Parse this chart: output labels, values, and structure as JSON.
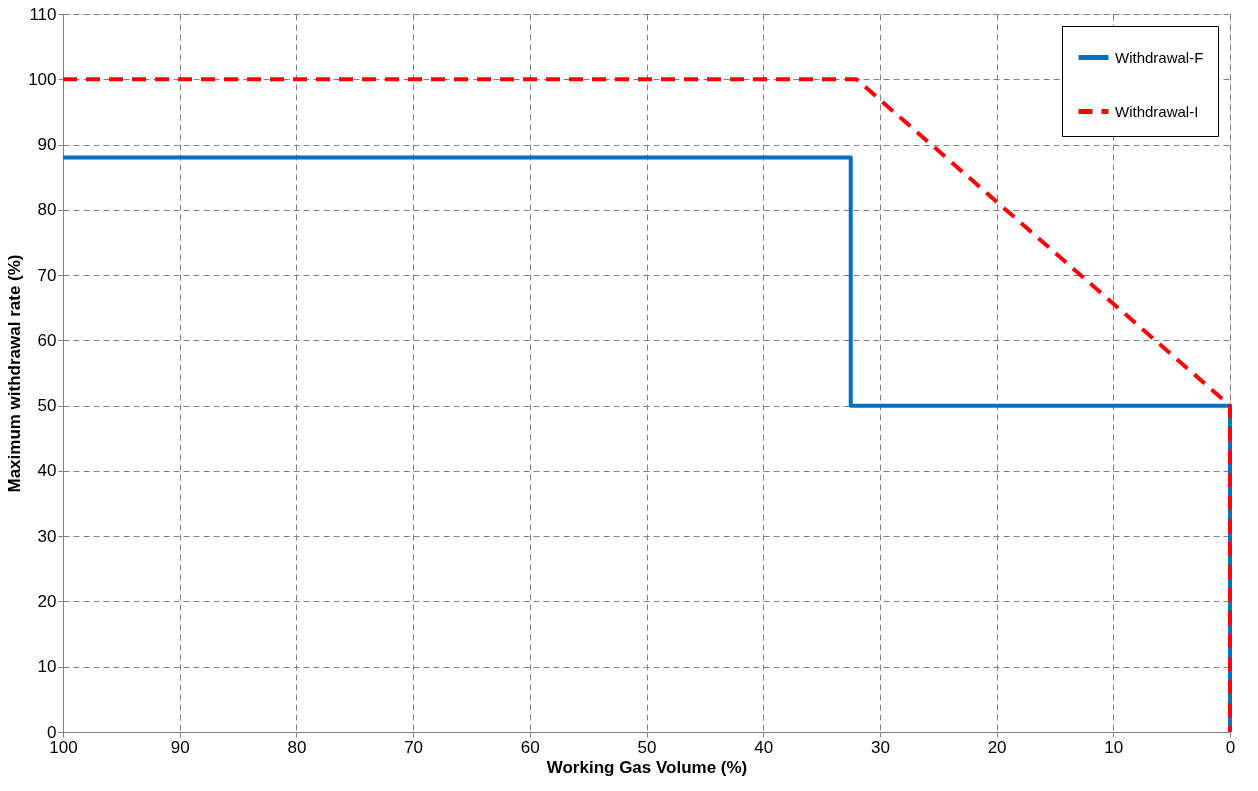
{
  "chart_data": {
    "type": "line",
    "xlabel": "Working Gas Volume (%)",
    "ylabel": "Maximum  withdrawal  rate (%)",
    "xlim": [
      100,
      0
    ],
    "xticks": [
      100,
      90,
      80,
      70,
      60,
      50,
      40,
      30,
      20,
      10,
      0
    ],
    "ylim": [
      0,
      110
    ],
    "yticks": [
      0,
      10,
      20,
      30,
      40,
      50,
      60,
      70,
      80,
      90,
      100,
      110
    ],
    "grid": true,
    "legend": "top right",
    "marker": "none",
    "series": [
      {
        "name": "Withdrawal-F",
        "color": "#0070c0",
        "line_style": "solid",
        "x": [
          100,
          32.5,
          32.5,
          0,
          0
        ],
        "values": [
          88,
          88,
          50,
          50,
          0
        ]
      },
      {
        "name": "Withdrawal-I",
        "color": "#ff0000",
        "line_style": "dashed",
        "x": [
          100,
          32,
          0,
          0
        ],
        "values": [
          100,
          100,
          50,
          0
        ]
      }
    ]
  }
}
